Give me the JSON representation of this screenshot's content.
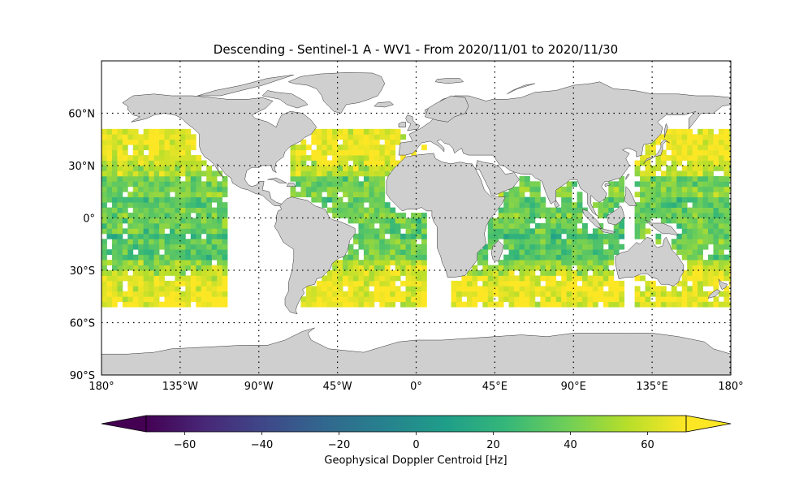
{
  "chart_data": {
    "type": "heatmap",
    "title": "Descending - Sentinel-1 A - WV1 - From 2020/11/01 to 2020/11/30",
    "projection": "PlateCarree",
    "xlim": [
      -180,
      180
    ],
    "ylim": [
      -90,
      90
    ],
    "x_ticks": [
      {
        "value": -180,
        "label": "180°"
      },
      {
        "value": -135,
        "label": "135°W"
      },
      {
        "value": -90,
        "label": "90°W"
      },
      {
        "value": -45,
        "label": "45°W"
      },
      {
        "value": 0,
        "label": "0°"
      },
      {
        "value": 45,
        "label": "45°E"
      },
      {
        "value": 90,
        "label": "90°E"
      },
      {
        "value": 135,
        "label": "135°E"
      },
      {
        "value": 180,
        "label": "180°"
      }
    ],
    "y_ticks": [
      {
        "value": 60,
        "label": "60°N"
      },
      {
        "value": 30,
        "label": "30°N"
      },
      {
        "value": 0,
        "label": "0°"
      },
      {
        "value": -30,
        "label": "30°S"
      },
      {
        "value": -60,
        "label": "60°S"
      },
      {
        "value": -90,
        "label": "90°S"
      }
    ],
    "gridlines": true,
    "colorbar": {
      "label": "Geophysical Doppler Centroid [Hz]",
      "colormap": "viridis",
      "range": [
        -70,
        70
      ],
      "extend": "both",
      "orientation": "horizontal",
      "placement": "bottom",
      "ticks": [
        {
          "value": -60,
          "label": "−60"
        },
        {
          "value": -40,
          "label": "−40"
        },
        {
          "value": -20,
          "label": "−20"
        },
        {
          "value": 0,
          "label": "0"
        },
        {
          "value": 20,
          "label": "20"
        },
        {
          "value": 40,
          "label": "40"
        },
        {
          "value": 60,
          "label": "60"
        }
      ]
    },
    "colors": {
      "land": "#cfcfcf",
      "coastline": "#303030",
      "ocean": "#ffffff",
      "viridis": [
        "#440154",
        "#482878",
        "#3e4989",
        "#31688e",
        "#26828e",
        "#1f9e89",
        "#35b779",
        "#6ece58",
        "#b5de2b",
        "#fde725"
      ]
    },
    "cell_size_deg": [
      3,
      3
    ],
    "coverage_regions": [
      {
        "region": "Pacific Ocean (eastern)",
        "lon": [
          -180,
          -110
        ],
        "lat": [
          -51,
          50
        ],
        "typical_value_hz": [
          25,
          70
        ]
      },
      {
        "region": "Atlantic Ocean",
        "lon": [
          -72,
          5
        ],
        "lat": [
          -51,
          50
        ],
        "typical_value_hz": [
          25,
          70
        ]
      },
      {
        "region": "Indian Ocean",
        "lon": [
          20,
          118
        ],
        "lat": [
          -51,
          22
        ],
        "typical_value_hz": [
          25,
          70
        ]
      },
      {
        "region": "Pacific Ocean (western)",
        "lon": [
          125,
          180
        ],
        "lat": [
          -51,
          50
        ],
        "typical_value_hz": [
          25,
          70
        ]
      }
    ],
    "value_pattern": "Values mostly 20–70 Hz; near-saturated high values (~65–70 Hz) along 30–50°S and 20–50°N; lower values (~20–35 Hz) near the equator and in the trade-wind belts."
  }
}
